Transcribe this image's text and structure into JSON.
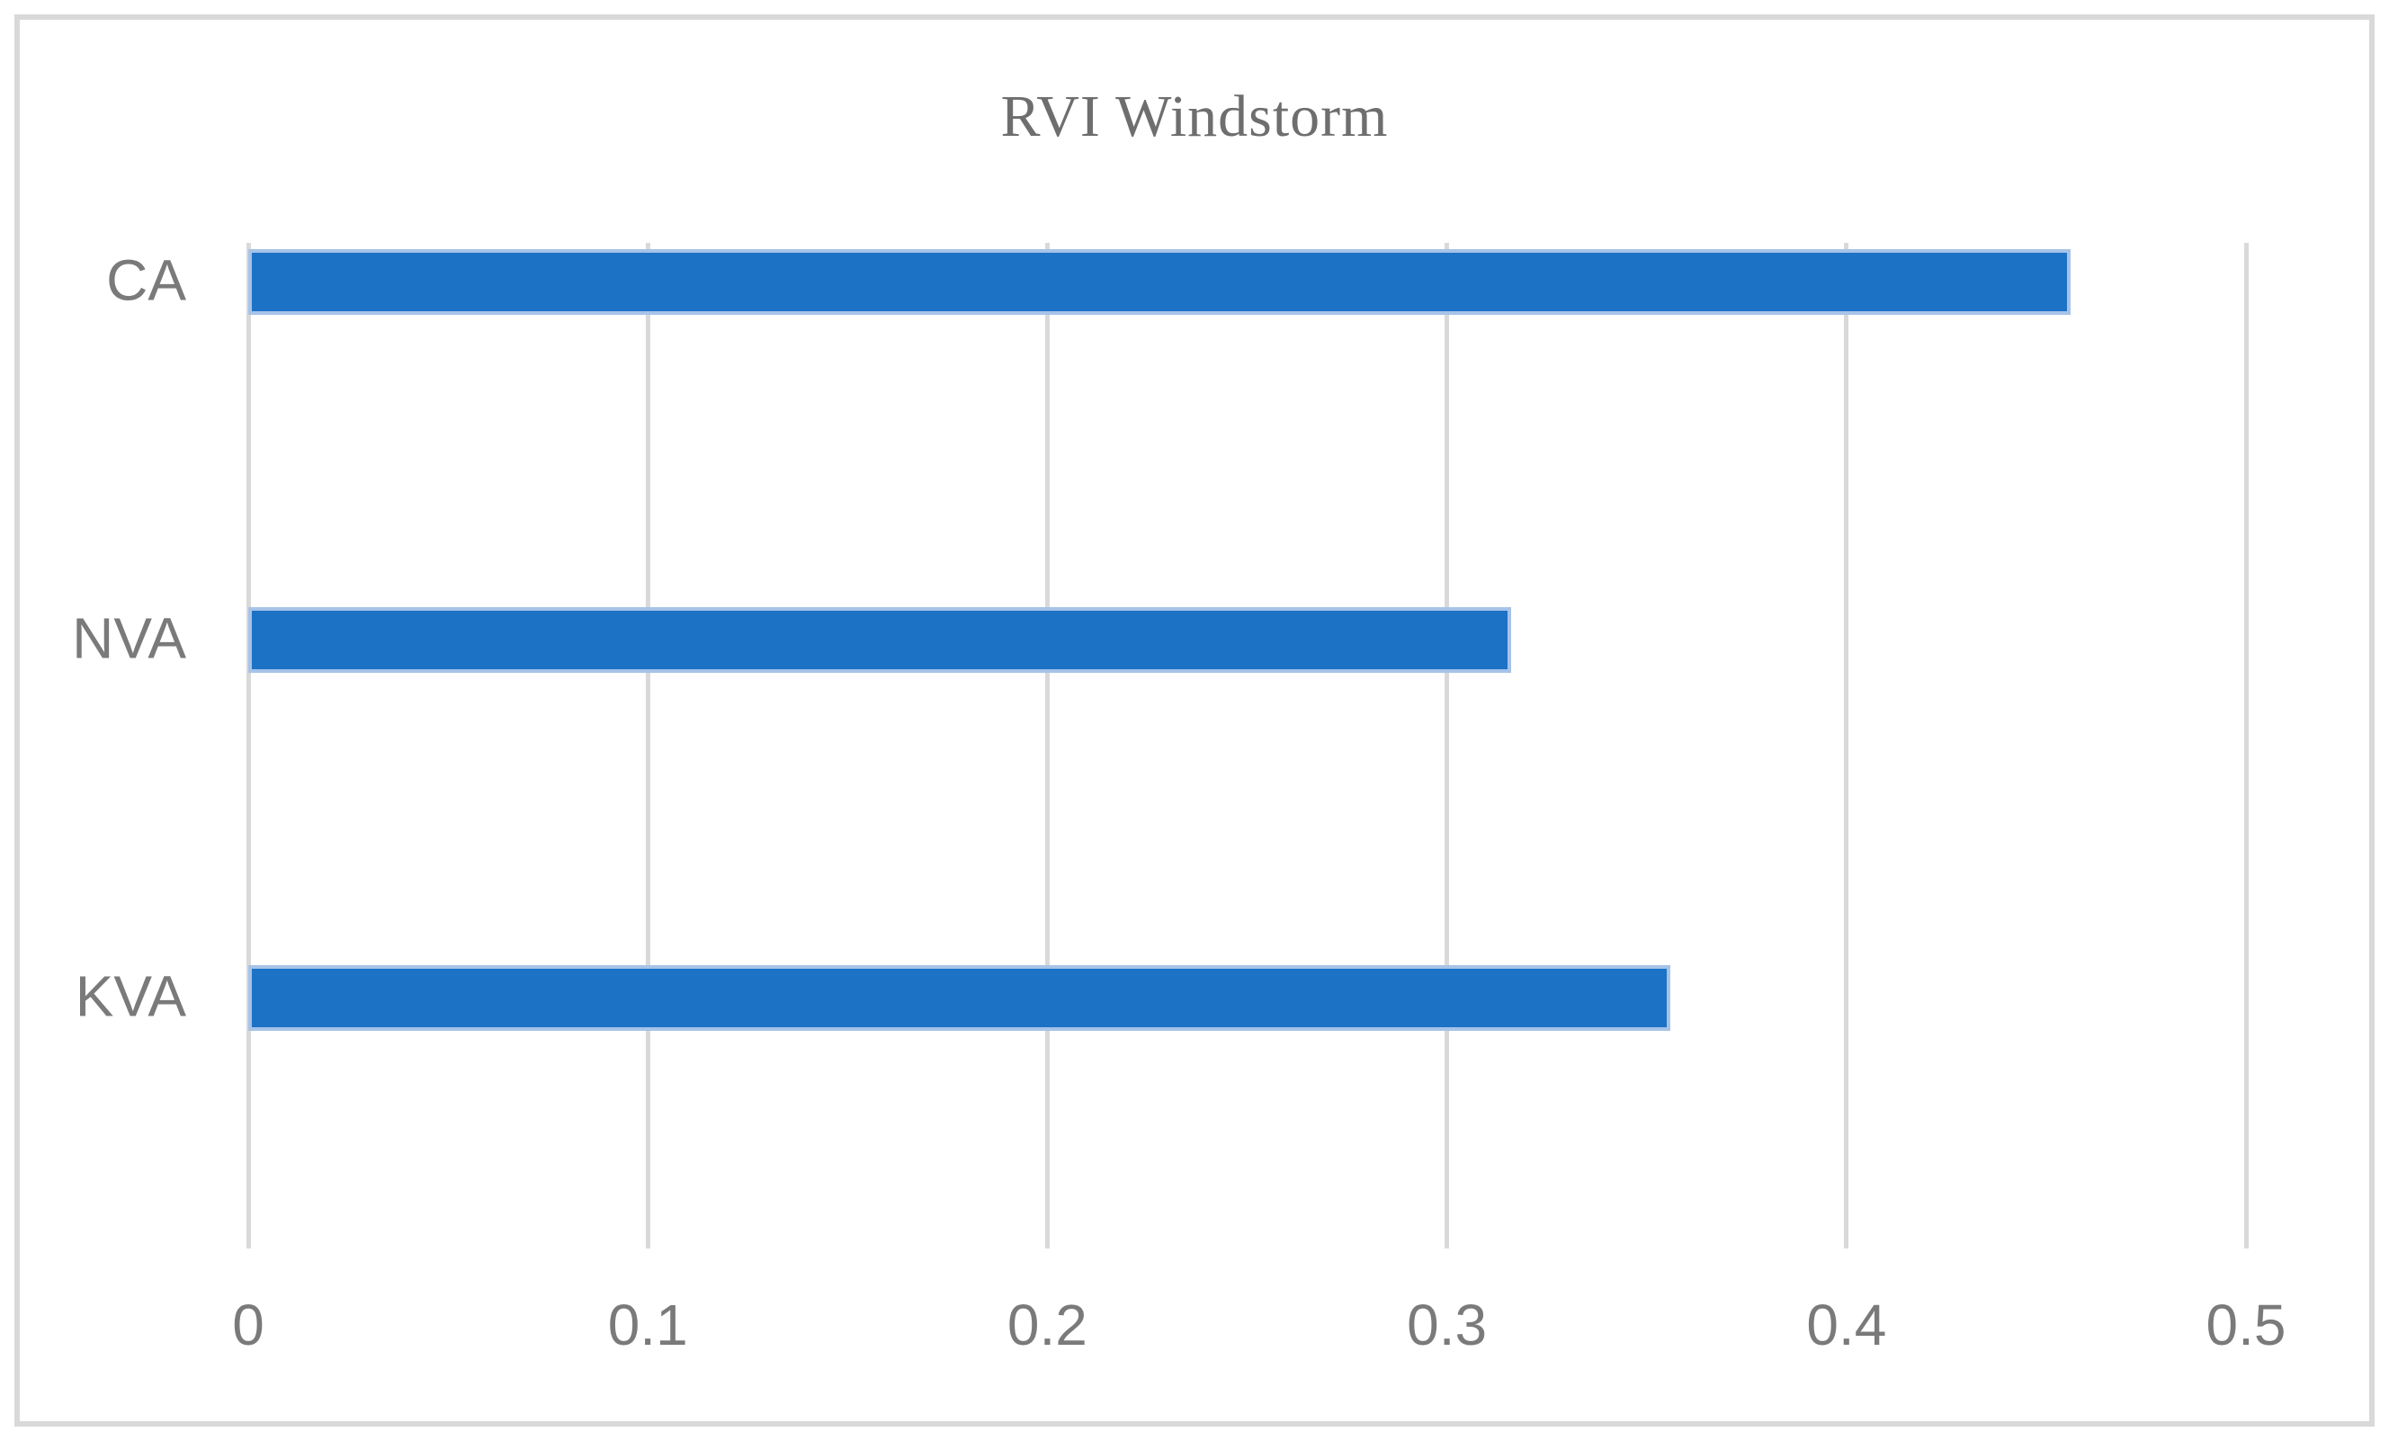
{
  "chart_data": {
    "type": "bar",
    "orientation": "horizontal",
    "title": "RVI Windstorm",
    "categories": [
      "CA",
      "NVA",
      "KVA"
    ],
    "values": [
      0.456,
      0.316,
      0.356
    ],
    "xlabel": "",
    "ylabel": "",
    "xlim": [
      0,
      0.5
    ],
    "xticks": [
      0,
      0.1,
      0.2,
      0.3,
      0.4,
      0.5
    ],
    "xtick_labels": [
      "0",
      "0.1",
      "0.2",
      "0.3",
      "0.4",
      "0.5"
    ],
    "grid": "vertical-gridlines-only",
    "legend": "none",
    "axis_line": "none",
    "colors": {
      "bar_fill": "#1C72C5",
      "bar_edge": "#A7C3E8",
      "gridline": "#D9D9D9",
      "frame_border": "#D9D9D9",
      "title_text": "#6E6E6E",
      "axis_text": "#7A7A7A",
      "background": "#FFFFFF"
    }
  }
}
